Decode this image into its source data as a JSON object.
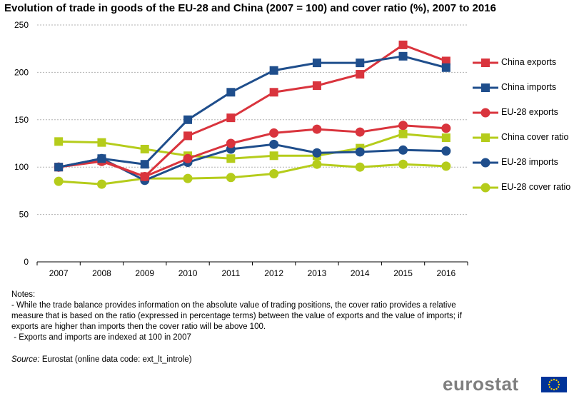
{
  "chart_data": {
    "type": "line",
    "title": "Evolution of trade in goods of the EU-28 and China (2007 = 100) and cover ratio (%), 2007 to 2016",
    "xlabel": "",
    "ylabel": "",
    "categories": [
      "2007",
      "2008",
      "2009",
      "2010",
      "2011",
      "2012",
      "2013",
      "2014",
      "2015",
      "2016"
    ],
    "ylim": [
      0,
      250
    ],
    "yticks": [
      0,
      50,
      100,
      150,
      200,
      250
    ],
    "grid": true,
    "legend_position": "right",
    "series": [
      {
        "name": "China exports",
        "color": "#d9343d",
        "marker": "square",
        "values": [
          100,
          107,
          90,
          133,
          152,
          179,
          186,
          198,
          229,
          212
        ]
      },
      {
        "name": "China imports",
        "color": "#1f4e8c",
        "marker": "square",
        "values": [
          100,
          109,
          103,
          150,
          179,
          202,
          210,
          210,
          217,
          205
        ]
      },
      {
        "name": "EU-28 exports",
        "color": "#d9343d",
        "marker": "circle",
        "values": [
          100,
          106,
          90,
          109,
          125,
          136,
          140,
          137,
          144,
          141
        ]
      },
      {
        "name": "China cover ratio",
        "color": "#b5cc1b",
        "marker": "square",
        "values": [
          127,
          126,
          119,
          112,
          109,
          112,
          112,
          120,
          135,
          131
        ]
      },
      {
        "name": "EU-28 imports",
        "color": "#1f4e8c",
        "marker": "circle",
        "values": [
          100,
          109,
          86,
          105,
          119,
          124,
          115,
          116,
          118,
          117
        ]
      },
      {
        "name": "EU-28 cover ratio",
        "color": "#b5cc1b",
        "marker": "circle",
        "values": [
          85,
          82,
          88,
          88,
          89,
          93,
          103,
          100,
          103,
          101
        ]
      }
    ]
  },
  "notes": {
    "heading": "Notes:",
    "lines": [
      "- While the trade balance provides information on the absolute value of trading positions, the cover ratio provides a relative",
      "measure that is based on the ratio (expressed in percentage terms) between the value of exports and the value of imports; if",
      "exports are higher than imports then the cover ratio will be above 100.",
      " - Exports and imports are indexed at 100 in 2007"
    ]
  },
  "source": {
    "label": "Source:",
    "text": "Eurostat (online data code: ext_lt_introle)"
  },
  "logo": {
    "text": "eurostat",
    "flag_color": "#003399",
    "star_color": "#ffcc00"
  }
}
